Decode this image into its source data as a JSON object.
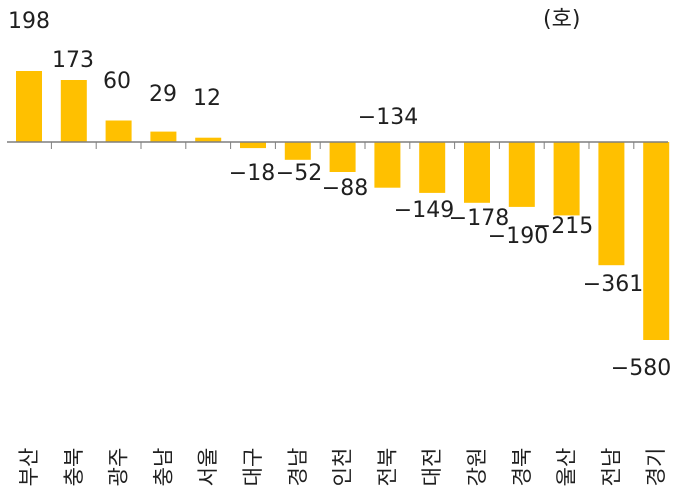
{
  "chart_data": {
    "type": "bar",
    "unit_label": "(호)",
    "categories": [
      "부산",
      "충북",
      "광주",
      "충남",
      "서울",
      "대구",
      "경남",
      "인천",
      "전북",
      "대전",
      "강원",
      "경북",
      "울산",
      "전남",
      "경기"
    ],
    "values": [
      198,
      173,
      60,
      29,
      12,
      -18,
      -52,
      -88,
      -134,
      -149,
      -178,
      -190,
      -215,
      -361,
      -580
    ],
    "value_labels": [
      "198",
      "173",
      "60",
      "29",
      "12",
      "−18",
      "−52",
      "−88",
      "−134",
      "−149",
      "−178",
      "−190",
      "−215",
      "−361",
      "−580"
    ],
    "bar_color": "#FFC000",
    "axis_color": "#7f7f7f",
    "ylim": [
      -580,
      198
    ],
    "grid": false,
    "legend": "none"
  }
}
